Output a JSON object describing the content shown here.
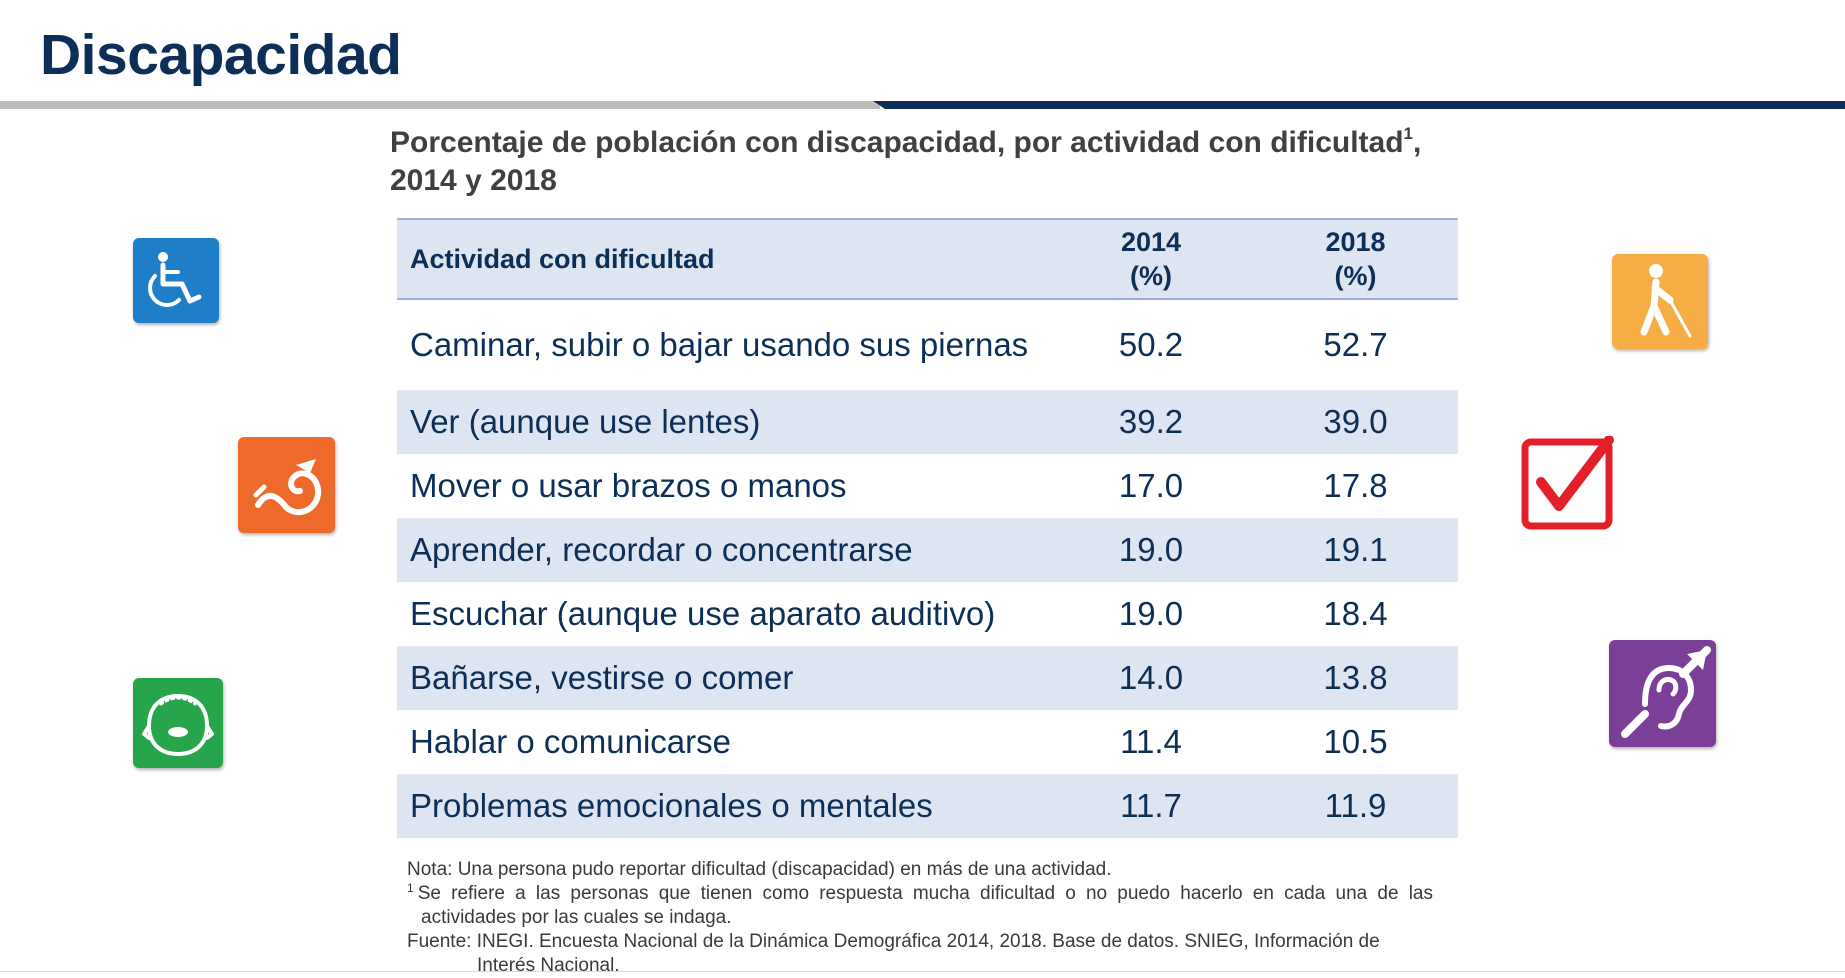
{
  "header": {
    "title": "Discapacidad"
  },
  "subtitle": {
    "line1": "Porcentaje de población con discapacidad, por actividad con dificultad",
    "footnote_mark": "1",
    "line1_end": ",",
    "line2": "2014 y 2018"
  },
  "table": {
    "header": {
      "activity": "Actividad con dificultad",
      "col1_year": "2014",
      "col1_unit": "(%)",
      "col2_year": "2018",
      "col2_unit": "(%)"
    },
    "rows": [
      {
        "activity": "Caminar, subir o bajar usando sus piernas",
        "v2014": "50.2",
        "v2018": "52.7"
      },
      {
        "activity": "Ver (aunque use lentes)",
        "v2014": "39.2",
        "v2018": "39.0"
      },
      {
        "activity": "Mover o usar brazos o manos",
        "v2014": "17.0",
        "v2018": "17.8"
      },
      {
        "activity": "Aprender, recordar o concentrarse",
        "v2014": "19.0",
        "v2018": "19.1"
      },
      {
        "activity": "Escuchar (aunque use aparato auditivo)",
        "v2014": "19.0",
        "v2018": "18.4"
      },
      {
        "activity": "Bañarse, vestirse o comer",
        "v2014": "14.0",
        "v2018": "13.8"
      },
      {
        "activity": "Hablar o comunicarse",
        "v2014": "11.4",
        "v2018": "10.5"
      },
      {
        "activity": "Problemas emocionales o mentales",
        "v2014": "11.7",
        "v2018": "11.9"
      }
    ]
  },
  "notes": {
    "nota": "Nota: Una persona pudo reportar dificultad (discapacidad) en más de una actividad.",
    "footnote_mark": "1",
    "footnote": "Se refiere a las personas que tienen como respuesta mucha dificultad o no puedo hacerlo en cada una de las actividades por las cuales se indaga.",
    "fuente": "Fuente: INEGI. Encuesta Nacional de la Dinámica Demográfica 2014, 2018. Base de datos. SNIEG, Información de Interés Nacional."
  },
  "icons": [
    {
      "name": "wheelchair-icon",
      "color": "#1e7ec8"
    },
    {
      "name": "arm-movement-icon",
      "color": "#ee6a2b"
    },
    {
      "name": "face-speech-icon",
      "color": "#27a54a"
    },
    {
      "name": "blind-person-cane-icon",
      "color": "#f7ad45"
    },
    {
      "name": "checkmark-box-icon",
      "color": "#e3202a"
    },
    {
      "name": "deaf-ear-icon",
      "color": "#7b3f98"
    }
  ]
}
